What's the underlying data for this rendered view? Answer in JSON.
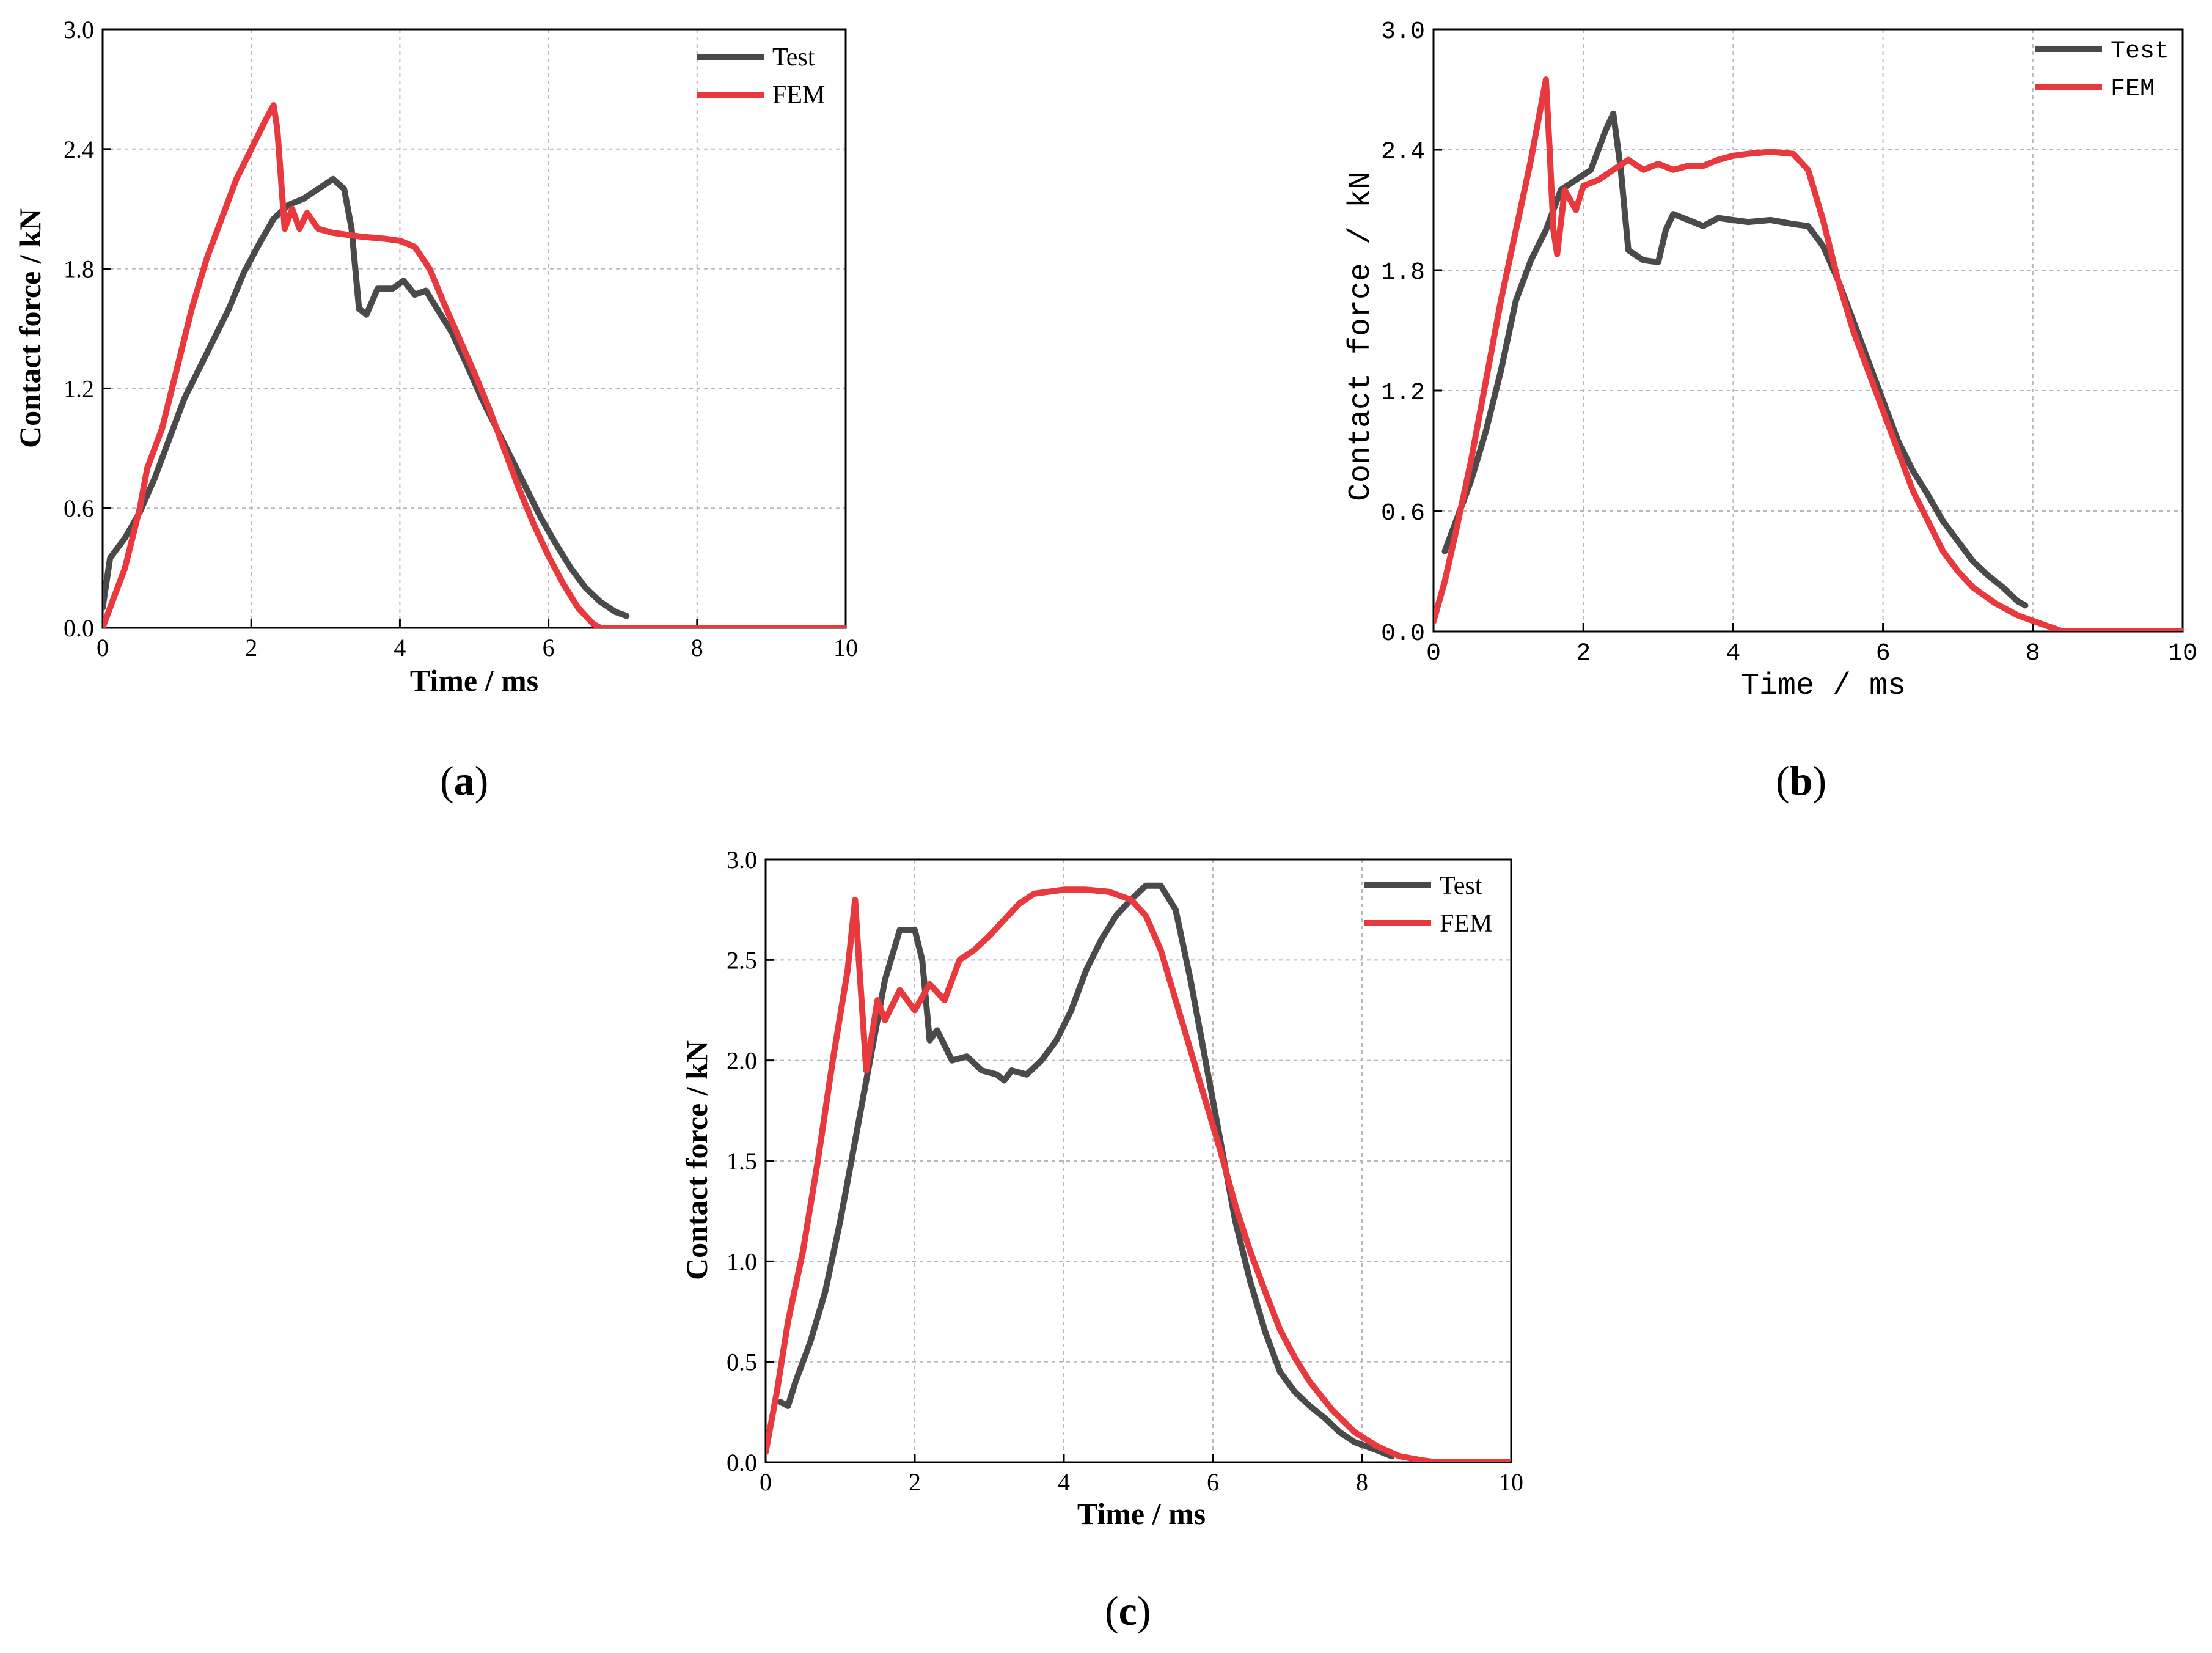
{
  "chart_data": [
    {
      "type": "line",
      "panel": "(a)",
      "caption": {
        "open": "(",
        "letter": "a",
        "close": ")"
      },
      "xlabel": "Time / ms",
      "ylabel": "Contact force / kN",
      "xlim": [
        0,
        10
      ],
      "ylim": [
        0,
        3.0
      ],
      "xticks": [
        "0",
        "2",
        "4",
        "6",
        "8",
        "10"
      ],
      "yticks": [
        "0.0",
        "0.6",
        "1.2",
        "1.8",
        "2.4",
        "3.0"
      ],
      "grid": true,
      "legend_position": "top-right",
      "series": [
        {
          "name": "Test",
          "color": "#4a4a4a",
          "points": [
            [
              0,
              0.1
            ],
            [
              0.1,
              0.35
            ],
            [
              0.3,
              0.45
            ],
            [
              0.5,
              0.58
            ],
            [
              0.7,
              0.75
            ],
            [
              0.9,
              0.95
            ],
            [
              1.1,
              1.15
            ],
            [
              1.3,
              1.3
            ],
            [
              1.5,
              1.45
            ],
            [
              1.7,
              1.6
            ],
            [
              1.9,
              1.78
            ],
            [
              2.1,
              1.92
            ],
            [
              2.3,
              2.05
            ],
            [
              2.5,
              2.12
            ],
            [
              2.7,
              2.15
            ],
            [
              2.9,
              2.2
            ],
            [
              3.1,
              2.25
            ],
            [
              3.25,
              2.2
            ],
            [
              3.35,
              2.0
            ],
            [
              3.45,
              1.6
            ],
            [
              3.55,
              1.57
            ],
            [
              3.7,
              1.7
            ],
            [
              3.9,
              1.7
            ],
            [
              4.05,
              1.74
            ],
            [
              4.2,
              1.67
            ],
            [
              4.35,
              1.69
            ],
            [
              4.5,
              1.6
            ],
            [
              4.7,
              1.48
            ],
            [
              4.9,
              1.32
            ],
            [
              5.1,
              1.15
            ],
            [
              5.3,
              1.0
            ],
            [
              5.5,
              0.85
            ],
            [
              5.7,
              0.7
            ],
            [
              5.9,
              0.55
            ],
            [
              6.1,
              0.42
            ],
            [
              6.3,
              0.3
            ],
            [
              6.5,
              0.2
            ],
            [
              6.7,
              0.13
            ],
            [
              6.9,
              0.08
            ],
            [
              7.05,
              0.06
            ]
          ]
        },
        {
          "name": "FEM",
          "color": "#e8393e",
          "points": [
            [
              0,
              0
            ],
            [
              0.15,
              0.15
            ],
            [
              0.3,
              0.3
            ],
            [
              0.5,
              0.6
            ],
            [
              0.6,
              0.8
            ],
            [
              0.8,
              1.0
            ],
            [
              1.0,
              1.3
            ],
            [
              1.2,
              1.6
            ],
            [
              1.4,
              1.85
            ],
            [
              1.6,
              2.05
            ],
            [
              1.8,
              2.25
            ],
            [
              2.0,
              2.4
            ],
            [
              2.2,
              2.55
            ],
            [
              2.3,
              2.62
            ],
            [
              2.35,
              2.5
            ],
            [
              2.45,
              2.0
            ],
            [
              2.55,
              2.1
            ],
            [
              2.65,
              2.0
            ],
            [
              2.75,
              2.08
            ],
            [
              2.9,
              2.0
            ],
            [
              3.1,
              1.98
            ],
            [
              3.5,
              1.96
            ],
            [
              3.8,
              1.95
            ],
            [
              4.0,
              1.94
            ],
            [
              4.2,
              1.91
            ],
            [
              4.4,
              1.8
            ],
            [
              4.6,
              1.62
            ],
            [
              4.8,
              1.45
            ],
            [
              5.0,
              1.28
            ],
            [
              5.2,
              1.1
            ],
            [
              5.4,
              0.9
            ],
            [
              5.6,
              0.7
            ],
            [
              5.8,
              0.52
            ],
            [
              6.0,
              0.36
            ],
            [
              6.2,
              0.22
            ],
            [
              6.4,
              0.1
            ],
            [
              6.6,
              0.02
            ],
            [
              6.7,
              0
            ],
            [
              8,
              0
            ],
            [
              10,
              0
            ]
          ]
        }
      ]
    },
    {
      "type": "line",
      "panel": "(b)",
      "caption": {
        "open": "(",
        "letter": "b",
        "close": ")"
      },
      "xlabel": "Time / ms",
      "ylabel": "Contact force / kN",
      "xlim": [
        0,
        10
      ],
      "ylim": [
        0,
        3.0
      ],
      "xticks": [
        "0",
        "2",
        "4",
        "6",
        "8",
        "10"
      ],
      "yticks": [
        "0.0",
        "0.6",
        "1.2",
        "1.8",
        "2.4",
        "3.0"
      ],
      "grid": true,
      "legend_position": "top-right",
      "series": [
        {
          "name": "Test",
          "color": "#4a4a4a",
          "points": [
            [
              0.15,
              0.4
            ],
            [
              0.3,
              0.55
            ],
            [
              0.5,
              0.75
            ],
            [
              0.7,
              1.0
            ],
            [
              0.9,
              1.3
            ],
            [
              1.1,
              1.65
            ],
            [
              1.3,
              1.85
            ],
            [
              1.5,
              2.0
            ],
            [
              1.7,
              2.2
            ],
            [
              1.9,
              2.25
            ],
            [
              2.1,
              2.3
            ],
            [
              2.2,
              2.4
            ],
            [
              2.3,
              2.5
            ],
            [
              2.4,
              2.58
            ],
            [
              2.5,
              2.3
            ],
            [
              2.6,
              1.9
            ],
            [
              2.8,
              1.85
            ],
            [
              3.0,
              1.84
            ],
            [
              3.1,
              2.0
            ],
            [
              3.2,
              2.08
            ],
            [
              3.4,
              2.05
            ],
            [
              3.6,
              2.02
            ],
            [
              3.8,
              2.06
            ],
            [
              4.0,
              2.05
            ],
            [
              4.2,
              2.04
            ],
            [
              4.5,
              2.05
            ],
            [
              4.8,
              2.03
            ],
            [
              5.0,
              2.02
            ],
            [
              5.2,
              1.92
            ],
            [
              5.4,
              1.75
            ],
            [
              5.6,
              1.55
            ],
            [
              5.8,
              1.35
            ],
            [
              6.0,
              1.15
            ],
            [
              6.2,
              0.95
            ],
            [
              6.4,
              0.8
            ],
            [
              6.6,
              0.68
            ],
            [
              6.8,
              0.55
            ],
            [
              7.0,
              0.45
            ],
            [
              7.2,
              0.35
            ],
            [
              7.4,
              0.28
            ],
            [
              7.6,
              0.22
            ],
            [
              7.8,
              0.15
            ],
            [
              7.9,
              0.13
            ]
          ]
        },
        {
          "name": "FEM",
          "color": "#e8393e",
          "points": [
            [
              0,
              0.05
            ],
            [
              0.15,
              0.25
            ],
            [
              0.3,
              0.5
            ],
            [
              0.5,
              0.85
            ],
            [
              0.7,
              1.25
            ],
            [
              0.9,
              1.65
            ],
            [
              1.1,
              2.0
            ],
            [
              1.3,
              2.35
            ],
            [
              1.45,
              2.65
            ],
            [
              1.5,
              2.75
            ],
            [
              1.55,
              2.4
            ],
            [
              1.6,
              2.0
            ],
            [
              1.65,
              1.88
            ],
            [
              1.75,
              2.2
            ],
            [
              1.9,
              2.1
            ],
            [
              2.0,
              2.22
            ],
            [
              2.2,
              2.25
            ],
            [
              2.4,
              2.3
            ],
            [
              2.6,
              2.35
            ],
            [
              2.8,
              2.3
            ],
            [
              3.0,
              2.33
            ],
            [
              3.2,
              2.3
            ],
            [
              3.4,
              2.32
            ],
            [
              3.6,
              2.32
            ],
            [
              3.8,
              2.35
            ],
            [
              4.0,
              2.37
            ],
            [
              4.2,
              2.38
            ],
            [
              4.5,
              2.39
            ],
            [
              4.8,
              2.38
            ],
            [
              5.0,
              2.3
            ],
            [
              5.2,
              2.05
            ],
            [
              5.4,
              1.75
            ],
            [
              5.6,
              1.5
            ],
            [
              5.8,
              1.3
            ],
            [
              6.0,
              1.1
            ],
            [
              6.2,
              0.9
            ],
            [
              6.4,
              0.7
            ],
            [
              6.6,
              0.55
            ],
            [
              6.8,
              0.4
            ],
            [
              7.0,
              0.3
            ],
            [
              7.2,
              0.22
            ],
            [
              7.5,
              0.14
            ],
            [
              7.8,
              0.08
            ],
            [
              8.1,
              0.04
            ],
            [
              8.4,
              0
            ],
            [
              9,
              0
            ],
            [
              10,
              0
            ]
          ]
        }
      ]
    },
    {
      "type": "line",
      "panel": "(c)",
      "caption": {
        "open": "(",
        "letter": "c",
        "close": ")"
      },
      "xlabel": "Time / ms",
      "ylabel": "Contact force / kN",
      "xlim": [
        0,
        10
      ],
      "ylim": [
        0,
        3.0
      ],
      "xticks": [
        "0",
        "2",
        "4",
        "6",
        "8",
        "10"
      ],
      "yticks": [
        "0.0",
        "0.5",
        "1.0",
        "1.5",
        "2.0",
        "2.5",
        "3.0"
      ],
      "grid": true,
      "legend_position": "top-right",
      "series": [
        {
          "name": "Test",
          "color": "#4a4a4a",
          "points": [
            [
              0.2,
              0.3
            ],
            [
              0.3,
              0.28
            ],
            [
              0.4,
              0.4
            ],
            [
              0.5,
              0.5
            ],
            [
              0.6,
              0.6
            ],
            [
              0.8,
              0.85
            ],
            [
              1.0,
              1.2
            ],
            [
              1.2,
              1.6
            ],
            [
              1.4,
              2.0
            ],
            [
              1.6,
              2.4
            ],
            [
              1.8,
              2.65
            ],
            [
              2.0,
              2.65
            ],
            [
              2.1,
              2.5
            ],
            [
              2.2,
              2.1
            ],
            [
              2.3,
              2.15
            ],
            [
              2.5,
              2.0
            ],
            [
              2.7,
              2.02
            ],
            [
              2.9,
              1.95
            ],
            [
              3.1,
              1.93
            ],
            [
              3.2,
              1.9
            ],
            [
              3.3,
              1.95
            ],
            [
              3.5,
              1.93
            ],
            [
              3.7,
              2.0
            ],
            [
              3.9,
              2.1
            ],
            [
              4.1,
              2.25
            ],
            [
              4.3,
              2.45
            ],
            [
              4.5,
              2.6
            ],
            [
              4.7,
              2.72
            ],
            [
              4.9,
              2.8
            ],
            [
              5.1,
              2.87
            ],
            [
              5.3,
              2.87
            ],
            [
              5.5,
              2.75
            ],
            [
              5.7,
              2.4
            ],
            [
              5.9,
              2.0
            ],
            [
              6.1,
              1.6
            ],
            [
              6.3,
              1.2
            ],
            [
              6.5,
              0.9
            ],
            [
              6.7,
              0.65
            ],
            [
              6.9,
              0.45
            ],
            [
              7.1,
              0.35
            ],
            [
              7.3,
              0.28
            ],
            [
              7.5,
              0.22
            ],
            [
              7.7,
              0.15
            ],
            [
              7.9,
              0.1
            ],
            [
              8.2,
              0.06
            ],
            [
              8.4,
              0.03
            ]
          ]
        },
        {
          "name": "FEM",
          "color": "#e8393e",
          "points": [
            [
              0,
              0.05
            ],
            [
              0.15,
              0.35
            ],
            [
              0.3,
              0.7
            ],
            [
              0.5,
              1.05
            ],
            [
              0.7,
              1.5
            ],
            [
              0.9,
              2.0
            ],
            [
              1.1,
              2.45
            ],
            [
              1.2,
              2.8
            ],
            [
              1.25,
              2.5
            ],
            [
              1.35,
              1.95
            ],
            [
              1.5,
              2.3
            ],
            [
              1.6,
              2.2
            ],
            [
              1.8,
              2.35
            ],
            [
              2.0,
              2.25
            ],
            [
              2.2,
              2.38
            ],
            [
              2.4,
              2.3
            ],
            [
              2.6,
              2.5
            ],
            [
              2.8,
              2.55
            ],
            [
              3.0,
              2.62
            ],
            [
              3.2,
              2.7
            ],
            [
              3.4,
              2.78
            ],
            [
              3.6,
              2.83
            ],
            [
              3.8,
              2.84
            ],
            [
              4.0,
              2.85
            ],
            [
              4.3,
              2.85
            ],
            [
              4.6,
              2.84
            ],
            [
              4.9,
              2.8
            ],
            [
              5.1,
              2.72
            ],
            [
              5.3,
              2.55
            ],
            [
              5.5,
              2.3
            ],
            [
              5.7,
              2.05
            ],
            [
              5.9,
              1.8
            ],
            [
              6.1,
              1.55
            ],
            [
              6.3,
              1.28
            ],
            [
              6.5,
              1.05
            ],
            [
              6.7,
              0.85
            ],
            [
              6.9,
              0.66
            ],
            [
              7.1,
              0.52
            ],
            [
              7.3,
              0.4
            ],
            [
              7.6,
              0.26
            ],
            [
              7.9,
              0.15
            ],
            [
              8.2,
              0.08
            ],
            [
              8.5,
              0.03
            ],
            [
              8.8,
              0.01
            ],
            [
              9.0,
              0
            ],
            [
              10,
              0
            ]
          ]
        }
      ]
    }
  ]
}
